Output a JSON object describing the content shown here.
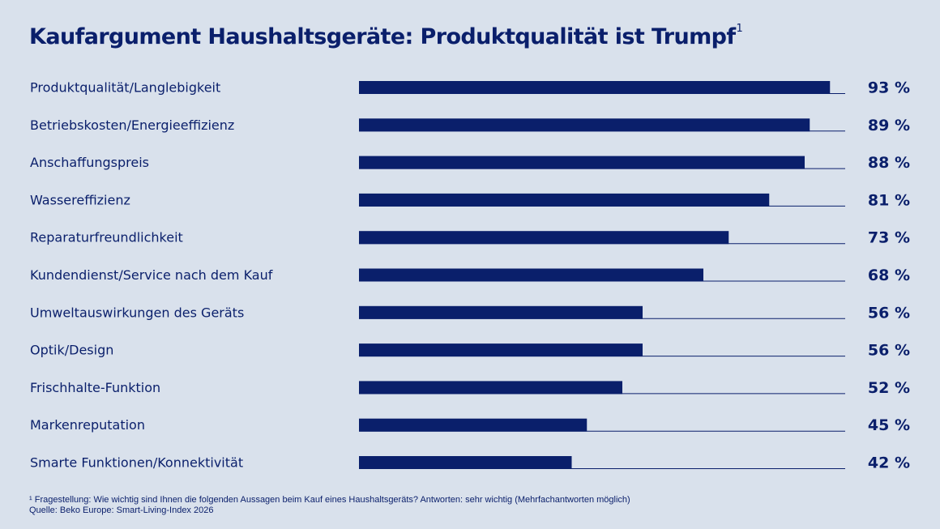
{
  "chart_data": {
    "type": "bar",
    "orientation": "horizontal",
    "title": "Kaufargument Haushaltsgeräte: Produktqualität ist Trumpf",
    "title_footnote_marker": "1",
    "categories": [
      "Produktqualität/Langlebigkeit",
      "Betriebskosten/Energieeffizienz",
      "Anschaffungspreis",
      "Wassereffizienz",
      "Reparaturfreundlichkeit",
      "Kundendienst/Service nach dem Kauf",
      "Umweltauswirkungen des Geräts",
      "Optik/Design",
      "Frischhalte-Funktion",
      "Markenreputation",
      "Smarte Funktionen/Konnektivität"
    ],
    "values": [
      93,
      89,
      88,
      81,
      73,
      68,
      56,
      56,
      52,
      45,
      42
    ],
    "value_labels": [
      "93 %",
      "89 %",
      "88 %",
      "81 %",
      "73 %",
      "68 %",
      "56 %",
      "56 %",
      "52 %",
      "45 %",
      "42 %"
    ],
    "xlim": [
      0,
      96
    ],
    "unit": "%",
    "grid": false,
    "legend": "none"
  },
  "footnotes": {
    "question": "¹ Fragestellung: Wie wichtig sind Ihnen die folgenden Aussagen beim Kauf eines Haushaltsgeräts? Antworten: sehr wichtig (Mehrfachantworten möglich)",
    "source": "Quelle: Beko Europe: Smart-Living-Index 2026"
  },
  "colors": {
    "background": "#d9e1ec",
    "bar": "#0a1f6b",
    "text": "#0a1f6b"
  }
}
